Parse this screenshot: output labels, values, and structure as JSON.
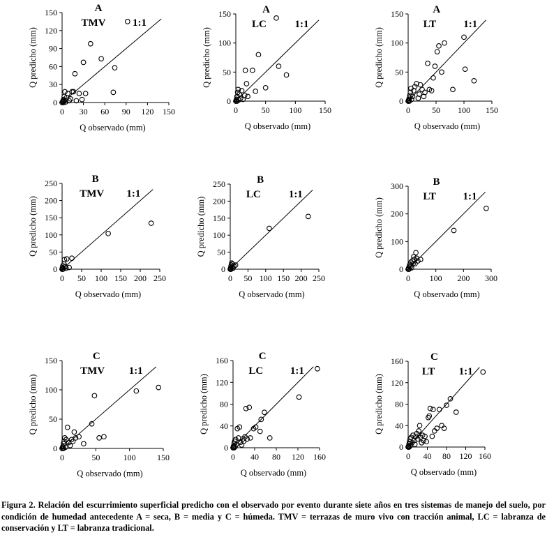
{
  "figure": {
    "caption": "Figura 2. Relación del escurrimiento superficial predicho con el observado por evento durante siete años en tres sistemas de manejo del suelo, por condición de humedad antecedente A = seca, B = media y C = húmeda. TMV = terrazas de muro vivo con tracción animal, LC = labranza de conservación y LT = labranza tradicional."
  },
  "chart_data": [
    {
      "type": "scatter",
      "panel": "A",
      "system": "TMV",
      "line_label": "1:1",
      "xlabel": "Q observado (mm)",
      "ylabel": "Q predicho (mm)",
      "xlim": [
        0,
        150
      ],
      "ylim": [
        0,
        150
      ],
      "xticks": [
        0,
        30,
        60,
        90,
        120,
        150
      ],
      "yticks": [
        0,
        30,
        60,
        90,
        120,
        150
      ],
      "points": [
        [
          0,
          0
        ],
        [
          1,
          2
        ],
        [
          2,
          5
        ],
        [
          3,
          10
        ],
        [
          4,
          18
        ],
        [
          5,
          1
        ],
        [
          6,
          8
        ],
        [
          8,
          15
        ],
        [
          10,
          3
        ],
        [
          12,
          6
        ],
        [
          14,
          18
        ],
        [
          16,
          18
        ],
        [
          18,
          48
        ],
        [
          20,
          3
        ],
        [
          24,
          15
        ],
        [
          28,
          5
        ],
        [
          30,
          67
        ],
        [
          33,
          15
        ],
        [
          40,
          98
        ],
        [
          55,
          73
        ],
        [
          72,
          17
        ],
        [
          74,
          58
        ],
        [
          92,
          135
        ],
        [
          1,
          1
        ],
        [
          2,
          0
        ],
        [
          3,
          3
        ]
      ]
    },
    {
      "type": "scatter",
      "panel": "A",
      "system": "LC",
      "line_label": "1:1",
      "xlabel": "Q observado (mm)",
      "ylabel": "Q predicho (mm)",
      "xlim": [
        0,
        150
      ],
      "ylim": [
        0,
        150
      ],
      "xticks": [
        0,
        50,
        100,
        150
      ],
      "yticks": [
        0,
        50,
        100,
        150
      ],
      "points": [
        [
          0,
          0
        ],
        [
          1,
          3
        ],
        [
          2,
          8
        ],
        [
          3,
          15
        ],
        [
          4,
          20
        ],
        [
          5,
          2
        ],
        [
          6,
          12
        ],
        [
          8,
          5
        ],
        [
          10,
          18
        ],
        [
          12,
          3
        ],
        [
          15,
          10
        ],
        [
          16,
          53
        ],
        [
          18,
          30
        ],
        [
          20,
          8
        ],
        [
          28,
          53
        ],
        [
          33,
          17
        ],
        [
          38,
          80
        ],
        [
          50,
          23
        ],
        [
          68,
          143
        ],
        [
          72,
          60
        ],
        [
          85,
          45
        ],
        [
          1,
          1
        ],
        [
          2,
          0
        ]
      ]
    },
    {
      "type": "scatter",
      "panel": "A",
      "system": "LT",
      "line_label": "1:1",
      "xlabel": "Q observado (mm)",
      "ylabel": "Q predicho (mm)",
      "xlim": [
        0,
        150
      ],
      "ylim": [
        0,
        150
      ],
      "xticks": [
        0,
        50,
        100,
        150
      ],
      "yticks": [
        0,
        50,
        100,
        150
      ],
      "points": [
        [
          0,
          0
        ],
        [
          1,
          2
        ],
        [
          2,
          5
        ],
        [
          3,
          10
        ],
        [
          4,
          15
        ],
        [
          5,
          22
        ],
        [
          6,
          3
        ],
        [
          8,
          8
        ],
        [
          10,
          18
        ],
        [
          12,
          25
        ],
        [
          15,
          30
        ],
        [
          18,
          5
        ],
        [
          20,
          12
        ],
        [
          22,
          28
        ],
        [
          25,
          20
        ],
        [
          28,
          8
        ],
        [
          30,
          15
        ],
        [
          35,
          65
        ],
        [
          38,
          20
        ],
        [
          42,
          18
        ],
        [
          45,
          40
        ],
        [
          48,
          60
        ],
        [
          52,
          85
        ],
        [
          55,
          95
        ],
        [
          60,
          50
        ],
        [
          65,
          100
        ],
        [
          80,
          20
        ],
        [
          100,
          110
        ],
        [
          102,
          55
        ],
        [
          118,
          35
        ],
        [
          1,
          1
        ],
        [
          2,
          0
        ]
      ]
    },
    {
      "type": "scatter",
      "panel": "B",
      "system": "TMV",
      "line_label": "1:1",
      "xlabel": "Q observado (mm)",
      "ylabel": "Q predicho (mm)",
      "xlim": [
        0,
        250
      ],
      "ylim": [
        0,
        250
      ],
      "xticks": [
        0,
        50,
        100,
        150,
        200,
        250
      ],
      "yticks": [
        0,
        50,
        100,
        150,
        200,
        250
      ],
      "points": [
        [
          0,
          0
        ],
        [
          1,
          5
        ],
        [
          2,
          10
        ],
        [
          3,
          2
        ],
        [
          5,
          15
        ],
        [
          6,
          28
        ],
        [
          8,
          8
        ],
        [
          10,
          3
        ],
        [
          12,
          30
        ],
        [
          18,
          5
        ],
        [
          25,
          32
        ],
        [
          118,
          104
        ],
        [
          228,
          134
        ],
        [
          1,
          1
        ],
        [
          2,
          0
        ]
      ]
    },
    {
      "type": "scatter",
      "panel": "B",
      "system": "LC",
      "line_label": "1:1",
      "xlabel": "Q observado (mm)",
      "ylabel": "Q predicho (mm)",
      "xlim": [
        0,
        250
      ],
      "ylim": [
        0,
        250
      ],
      "xticks": [
        0,
        50,
        100,
        150,
        200,
        250
      ],
      "yticks": [
        0,
        50,
        100,
        150,
        200,
        250
      ],
      "points": [
        [
          0,
          0
        ],
        [
          1,
          3
        ],
        [
          2,
          8
        ],
        [
          3,
          12
        ],
        [
          4,
          18
        ],
        [
          5,
          5
        ],
        [
          6,
          15
        ],
        [
          8,
          3
        ],
        [
          10,
          10
        ],
        [
          15,
          12
        ],
        [
          110,
          120
        ],
        [
          220,
          155
        ],
        [
          1,
          1
        ],
        [
          2,
          0
        ]
      ]
    },
    {
      "type": "scatter",
      "panel": "B",
      "system": "LT",
      "line_label": "1:1",
      "xlabel": "Q observado (mm)",
      "ylabel": "Q predicho (mm)",
      "xlim": [
        0,
        300
      ],
      "ylim": [
        0,
        300
      ],
      "xticks": [
        0,
        100,
        200,
        300
      ],
      "yticks": [
        0,
        100,
        200,
        300
      ],
      "points": [
        [
          0,
          0
        ],
        [
          2,
          5
        ],
        [
          5,
          15
        ],
        [
          8,
          10
        ],
        [
          10,
          25
        ],
        [
          12,
          5
        ],
        [
          15,
          30
        ],
        [
          18,
          20
        ],
        [
          20,
          45
        ],
        [
          22,
          35
        ],
        [
          25,
          20
        ],
        [
          28,
          60
        ],
        [
          30,
          40
        ],
        [
          35,
          30
        ],
        [
          45,
          35
        ],
        [
          165,
          140
        ],
        [
          282,
          220
        ],
        [
          1,
          1
        ],
        [
          3,
          0
        ]
      ]
    },
    {
      "type": "scatter",
      "panel": "C",
      "system": "TMV",
      "line_label": "1:1",
      "xlabel": "Q observado (mm)",
      "ylabel": "Q predicho (mm)",
      "xlim": [
        0,
        150
      ],
      "ylim": [
        0,
        150
      ],
      "xticks": [
        0,
        50,
        100,
        150
      ],
      "yticks": [
        0,
        50,
        100,
        150
      ],
      "points": [
        [
          0,
          0
        ],
        [
          1,
          3
        ],
        [
          2,
          8
        ],
        [
          3,
          12
        ],
        [
          4,
          18
        ],
        [
          5,
          2
        ],
        [
          6,
          15
        ],
        [
          8,
          36
        ],
        [
          10,
          10
        ],
        [
          12,
          5
        ],
        [
          14,
          15
        ],
        [
          16,
          12
        ],
        [
          18,
          28
        ],
        [
          20,
          18
        ],
        [
          25,
          20
        ],
        [
          32,
          8
        ],
        [
          44,
          42
        ],
        [
          48,
          90
        ],
        [
          55,
          18
        ],
        [
          62,
          20
        ],
        [
          110,
          98
        ],
        [
          143,
          104
        ],
        [
          1,
          1
        ],
        [
          2,
          0
        ]
      ]
    },
    {
      "type": "scatter",
      "panel": "C",
      "system": "LC",
      "line_label": "1:1",
      "xlabel": "Q observado (mm)",
      "ylabel": "Q predicho (mm)",
      "xlim": [
        0,
        160
      ],
      "ylim": [
        0,
        160
      ],
      "xticks": [
        0,
        40,
        80,
        120,
        160
      ],
      "yticks": [
        0,
        40,
        80,
        120,
        160
      ],
      "points": [
        [
          0,
          0
        ],
        [
          1,
          3
        ],
        [
          2,
          8
        ],
        [
          3,
          12
        ],
        [
          4,
          2
        ],
        [
          5,
          15
        ],
        [
          6,
          6
        ],
        [
          8,
          35
        ],
        [
          10,
          18
        ],
        [
          12,
          38
        ],
        [
          14,
          10
        ],
        [
          16,
          5
        ],
        [
          18,
          16
        ],
        [
          20,
          12
        ],
        [
          22,
          20
        ],
        [
          24,
          72
        ],
        [
          26,
          16
        ],
        [
          30,
          74
        ],
        [
          32,
          18
        ],
        [
          38,
          35
        ],
        [
          42,
          38
        ],
        [
          50,
          30
        ],
        [
          52,
          52
        ],
        [
          58,
          65
        ],
        [
          68,
          18
        ],
        [
          122,
          93
        ],
        [
          156,
          145
        ],
        [
          1,
          1
        ],
        [
          2,
          0
        ]
      ]
    },
    {
      "type": "scatter",
      "panel": "C",
      "system": "LT",
      "line_label": "1:1",
      "xlabel": "Q observado (mm)",
      "ylabel": "Q predicho (mm)",
      "xlim": [
        0,
        160
      ],
      "ylim": [
        0,
        160
      ],
      "xticks": [
        0,
        40,
        80,
        120,
        160
      ],
      "yticks": [
        0,
        40,
        80,
        120,
        160
      ],
      "points": [
        [
          0,
          0
        ],
        [
          1,
          2
        ],
        [
          2,
          6
        ],
        [
          3,
          10
        ],
        [
          4,
          15
        ],
        [
          5,
          3
        ],
        [
          6,
          18
        ],
        [
          8,
          8
        ],
        [
          10,
          22
        ],
        [
          12,
          12
        ],
        [
          14,
          5
        ],
        [
          16,
          20
        ],
        [
          18,
          25
        ],
        [
          20,
          15
        ],
        [
          22,
          30
        ],
        [
          24,
          40
        ],
        [
          26,
          18
        ],
        [
          28,
          8
        ],
        [
          30,
          22
        ],
        [
          32,
          12
        ],
        [
          35,
          20
        ],
        [
          38,
          10
        ],
        [
          42,
          55
        ],
        [
          44,
          58
        ],
        [
          46,
          72
        ],
        [
          50,
          20
        ],
        [
          52,
          70
        ],
        [
          55,
          30
        ],
        [
          60,
          35
        ],
        [
          65,
          70
        ],
        [
          70,
          40
        ],
        [
          75,
          35
        ],
        [
          80,
          78
        ],
        [
          88,
          90
        ],
        [
          100,
          65
        ],
        [
          156,
          140
        ],
        [
          1,
          1
        ],
        [
          2,
          0
        ]
      ]
    }
  ]
}
